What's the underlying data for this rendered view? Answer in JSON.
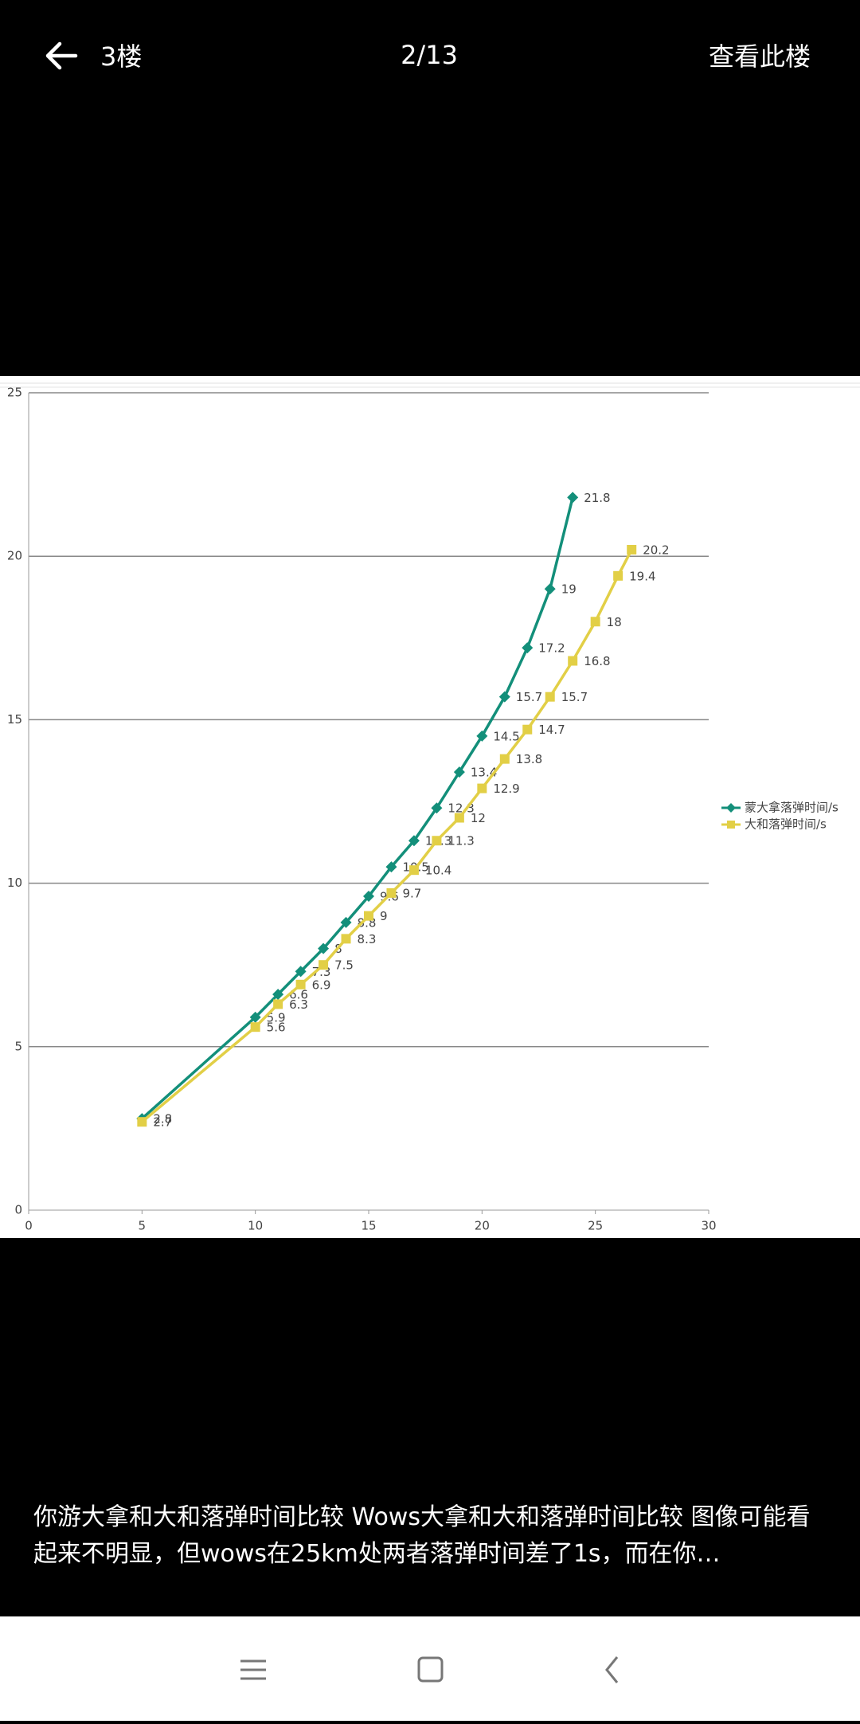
{
  "top_bar": {
    "floor": "3楼",
    "page": "2/13",
    "action": "查看此楼"
  },
  "chart_data": {
    "type": "line",
    "xlim": [
      0,
      30
    ],
    "xticks": [
      0,
      5,
      10,
      15,
      20,
      25,
      30
    ],
    "ylim": [
      0,
      25
    ],
    "yticks": [
      0,
      5,
      10,
      15,
      20,
      25
    ],
    "grid": true,
    "legend": "right",
    "series": [
      {
        "name": "蒙大拿落弹时间/s",
        "color": "#138f7a",
        "marker": "diamond",
        "x": [
          5,
          10,
          11,
          12,
          13,
          14,
          15,
          16,
          17,
          18,
          19,
          20,
          21,
          22,
          23,
          24
        ],
        "values": [
          2.8,
          5.9,
          6.6,
          7.3,
          8,
          8.8,
          9.6,
          10.5,
          11.3,
          12.3,
          13.4,
          14.5,
          15.7,
          17.2,
          19,
          21.8
        ]
      },
      {
        "name": "大和落弹时间/s",
        "color": "#e2cf46",
        "marker": "square",
        "x": [
          5,
          10,
          11,
          12,
          13,
          14,
          15,
          16,
          17,
          18,
          19,
          20,
          21,
          22,
          23,
          24,
          25,
          26,
          26.6
        ],
        "values": [
          2.7,
          5.6,
          6.3,
          6.9,
          7.5,
          8.3,
          9,
          9.7,
          10.4,
          11.3,
          12,
          12.9,
          13.8,
          14.7,
          15.7,
          16.8,
          18,
          19.4,
          20.2
        ]
      }
    ]
  },
  "caption": "你游大拿和大和落弹时间比较 Wows大拿和大和落弹时间比较 图像可能看起来不明显，但wows在25km处两者落弹时间差了1s，而在你…"
}
